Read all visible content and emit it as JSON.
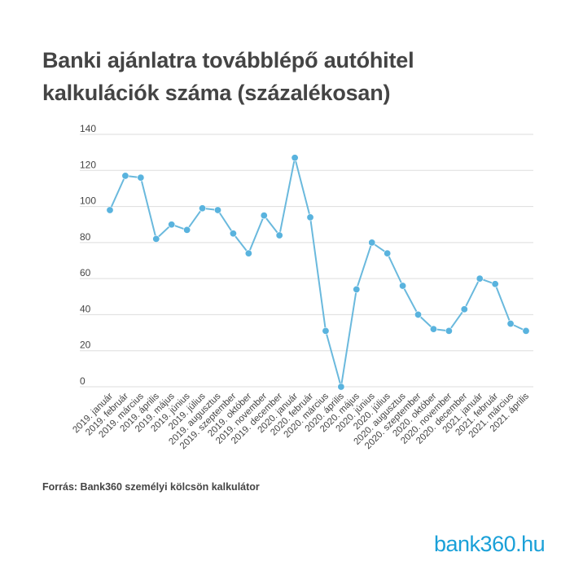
{
  "title_lines": [
    "Banki ajánlatra továbblépő autóhitel",
    "kalkulációk száma (százalékosan)"
  ],
  "source": "Forrás: Bank360 személyi kölcsön kalkulátor",
  "logo": {
    "pre": "bank36",
    "zero": "0",
    "post": ".hu"
  },
  "colors": {
    "line": "#6ab9dd",
    "marker": "#59b3de",
    "grid": "#dddddd",
    "logo": "#1aa0d8"
  },
  "chart_data": {
    "type": "line",
    "title": "Banki ajánlatra továbblépő autóhitel kalkulációk száma (százalékosan)",
    "xlabel": "",
    "ylabel": "",
    "ylim": [
      0,
      140
    ],
    "yticks": [
      0,
      20,
      40,
      60,
      80,
      100,
      120,
      140
    ],
    "grid": true,
    "categories": [
      "2019. január",
      "2019. február",
      "2019. március",
      "2019. április",
      "2019. május",
      "2019. június",
      "2019. július",
      "2019. augusztus",
      "2019. szeptember",
      "2019. október",
      "2019. november",
      "2019. december",
      "2020. január",
      "2020. február",
      "2020. március",
      "2020. április",
      "2020. május",
      "2020. június",
      "2020. július",
      "2020. augusztus",
      "2020. szeptember",
      "2020. október",
      "2020. november",
      "2020. december",
      "2021. január",
      "2021. február",
      "2021. március",
      "2021. április"
    ],
    "series": [
      {
        "values": [
          98,
          117,
          116,
          82,
          90,
          87,
          99,
          98,
          85,
          74,
          95,
          84,
          127,
          94,
          31,
          0,
          54,
          80,
          74,
          56,
          40,
          32,
          31,
          43,
          60,
          57,
          35,
          31
        ]
      }
    ]
  }
}
